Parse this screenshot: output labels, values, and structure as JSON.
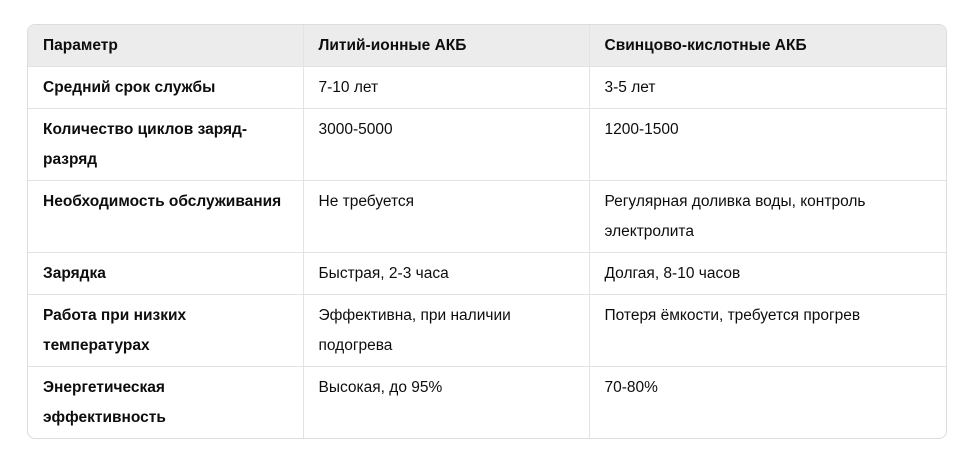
{
  "table": {
    "headers": [
      "Параметр",
      "Литий-ионные АКБ",
      "Свинцово-кислотные АКБ"
    ],
    "rows": [
      [
        "Средний срок службы",
        "7-10 лет",
        "3-5 лет"
      ],
      [
        "Количество циклов заряд-разряд",
        "3000-5000",
        "1200-1500"
      ],
      [
        "Необходимость обслуживания",
        "Не требуется",
        "Регулярная доливка воды, контроль электролита"
      ],
      [
        "Зарядка",
        "Быстрая, 2-3 часа",
        "Долгая, 8-10 часов"
      ],
      [
        "Работа при низких температурах",
        "Эффективна, при наличии подогрева",
        "Потеря ёмкости, требуется прогрев"
      ],
      [
        "Энергетическая эффективность",
        "Высокая, до 95%",
        "70-80%"
      ]
    ]
  }
}
